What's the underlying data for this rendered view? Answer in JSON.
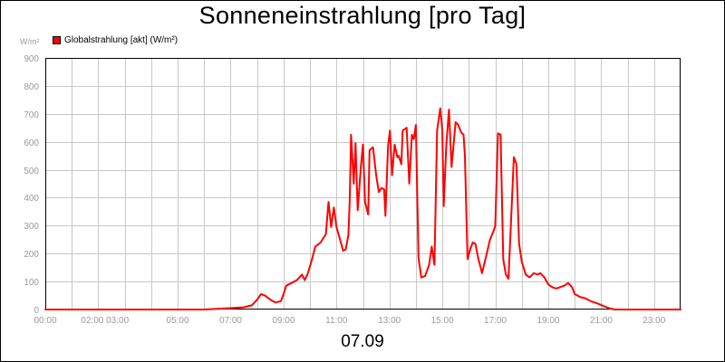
{
  "chart_data": {
    "type": "line",
    "title": "Sonneneinstrahlung [pro Tag]",
    "unit_label": "W/m²",
    "date_label": "07.09",
    "legend": [
      {
        "label": "Globalstrahlung [akt] (W/m²)",
        "color": "#ff0000"
      }
    ],
    "grid": true,
    "x_domain": [
      0,
      24
    ],
    "ylim": [
      0,
      900
    ],
    "y_ticks": [
      0,
      100,
      200,
      300,
      400,
      500,
      600,
      700,
      800,
      900
    ],
    "x_ticks": [
      {
        "at": 0,
        "label": "00:00"
      },
      {
        "at": 2.25,
        "label": "02:00 03:00"
      },
      {
        "at": 5,
        "label": "05:00"
      },
      {
        "at": 7,
        "label": "07:00"
      },
      {
        "at": 9,
        "label": "09:00"
      },
      {
        "at": 11,
        "label": "11:00"
      },
      {
        "at": 13,
        "label": "13:00"
      },
      {
        "at": 15,
        "label": "15:00"
      },
      {
        "at": 17,
        "label": "17:00"
      },
      {
        "at": 19,
        "label": "19:00"
      },
      {
        "at": 21,
        "label": "21:00"
      },
      {
        "at": 23,
        "label": "23:00"
      }
    ],
    "series": [
      {
        "name": "Globalstrahlung [akt] (W/m²)",
        "color": "#ff0000",
        "points": [
          [
            0.0,
            0
          ],
          [
            6.0,
            0
          ],
          [
            7.0,
            5
          ],
          [
            7.5,
            8
          ],
          [
            7.8,
            15
          ],
          [
            8.0,
            35
          ],
          [
            8.15,
            55
          ],
          [
            8.3,
            50
          ],
          [
            8.5,
            35
          ],
          [
            8.7,
            25
          ],
          [
            8.9,
            30
          ],
          [
            9.0,
            55
          ],
          [
            9.1,
            85
          ],
          [
            9.3,
            95
          ],
          [
            9.5,
            105
          ],
          [
            9.7,
            125
          ],
          [
            9.8,
            105
          ],
          [
            9.9,
            125
          ],
          [
            10.05,
            170
          ],
          [
            10.2,
            225
          ],
          [
            10.4,
            240
          ],
          [
            10.6,
            270
          ],
          [
            10.7,
            385
          ],
          [
            10.8,
            295
          ],
          [
            10.9,
            365
          ],
          [
            11.0,
            295
          ],
          [
            11.15,
            245
          ],
          [
            11.25,
            210
          ],
          [
            11.35,
            215
          ],
          [
            11.45,
            265
          ],
          [
            11.5,
            390
          ],
          [
            11.55,
            625
          ],
          [
            11.65,
            450
          ],
          [
            11.72,
            595
          ],
          [
            11.8,
            355
          ],
          [
            11.92,
            510
          ],
          [
            12.0,
            590
          ],
          [
            12.08,
            385
          ],
          [
            12.2,
            340
          ],
          [
            12.25,
            570
          ],
          [
            12.38,
            580
          ],
          [
            12.5,
            480
          ],
          [
            12.6,
            420
          ],
          [
            12.7,
            435
          ],
          [
            12.8,
            430
          ],
          [
            12.85,
            335
          ],
          [
            12.95,
            585
          ],
          [
            13.02,
            640
          ],
          [
            13.1,
            480
          ],
          [
            13.2,
            590
          ],
          [
            13.3,
            545
          ],
          [
            13.35,
            550
          ],
          [
            13.45,
            520
          ],
          [
            13.5,
            640
          ],
          [
            13.65,
            650
          ],
          [
            13.75,
            450
          ],
          [
            13.85,
            625
          ],
          [
            13.92,
            610
          ],
          [
            14.0,
            660
          ],
          [
            14.1,
            185
          ],
          [
            14.2,
            115
          ],
          [
            14.35,
            120
          ],
          [
            14.5,
            160
          ],
          [
            14.6,
            225
          ],
          [
            14.7,
            160
          ],
          [
            14.8,
            640
          ],
          [
            14.92,
            720
          ],
          [
            15.0,
            640
          ],
          [
            15.05,
            370
          ],
          [
            15.15,
            590
          ],
          [
            15.25,
            715
          ],
          [
            15.35,
            510
          ],
          [
            15.5,
            670
          ],
          [
            15.6,
            660
          ],
          [
            15.7,
            635
          ],
          [
            15.8,
            625
          ],
          [
            15.85,
            550
          ],
          [
            15.95,
            180
          ],
          [
            16.05,
            215
          ],
          [
            16.15,
            240
          ],
          [
            16.25,
            235
          ],
          [
            16.35,
            185
          ],
          [
            16.5,
            130
          ],
          [
            16.6,
            170
          ],
          [
            16.8,
            250
          ],
          [
            16.95,
            285
          ],
          [
            17.0,
            300
          ],
          [
            17.1,
            630
          ],
          [
            17.2,
            625
          ],
          [
            17.3,
            180
          ],
          [
            17.4,
            125
          ],
          [
            17.5,
            110
          ],
          [
            17.6,
            330
          ],
          [
            17.7,
            545
          ],
          [
            17.8,
            520
          ],
          [
            17.9,
            235
          ],
          [
            18.0,
            170
          ],
          [
            18.15,
            125
          ],
          [
            18.3,
            115
          ],
          [
            18.45,
            130
          ],
          [
            18.6,
            125
          ],
          [
            18.7,
            130
          ],
          [
            18.85,
            115
          ],
          [
            19.0,
            90
          ],
          [
            19.15,
            80
          ],
          [
            19.3,
            75
          ],
          [
            19.45,
            80
          ],
          [
            19.6,
            85
          ],
          [
            19.75,
            95
          ],
          [
            19.9,
            80
          ],
          [
            20.0,
            55
          ],
          [
            20.2,
            45
          ],
          [
            20.4,
            40
          ],
          [
            20.6,
            30
          ],
          [
            20.9,
            20
          ],
          [
            21.1,
            12
          ],
          [
            21.3,
            5
          ],
          [
            21.5,
            0
          ],
          [
            24.0,
            0
          ]
        ]
      }
    ]
  }
}
